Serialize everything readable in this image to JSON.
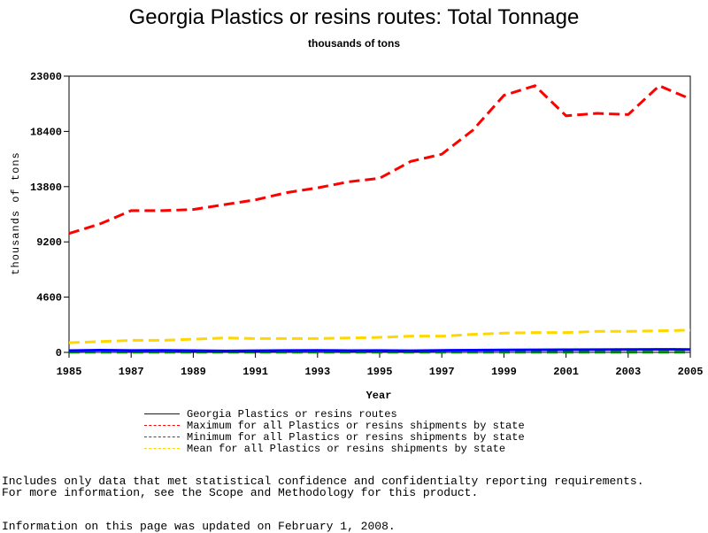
{
  "chart_data": {
    "type": "line",
    "title": "Georgia Plastics or resins routes: Total Tonnage",
    "subtitle": "thousands of tons",
    "xlabel": "Year",
    "ylabel": "thousands of tons",
    "x": [
      1985,
      1986,
      1987,
      1988,
      1989,
      1990,
      1991,
      1992,
      1993,
      1994,
      1995,
      1996,
      1997,
      1998,
      1999,
      2000,
      2001,
      2002,
      2003,
      2004,
      2005
    ],
    "xticks": [
      "1985",
      "1987",
      "1989",
      "1991",
      "1993",
      "1995",
      "1997",
      "1999",
      "2001",
      "2003",
      "2005"
    ],
    "yticks": [
      "0",
      "4600",
      "9200",
      "13800",
      "18400",
      "23000"
    ],
    "xlim": [
      1985,
      2005
    ],
    "ylim": [
      0,
      23000
    ],
    "series": [
      {
        "name": "Georgia Plastics or resins routes",
        "color": "#0000ff",
        "dash": "solid",
        "values": [
          150,
          180,
          160,
          170,
          150,
          120,
          140,
          160,
          170,
          150,
          160,
          140,
          170,
          180,
          200,
          210,
          220,
          230,
          240,
          250,
          240
        ]
      },
      {
        "name": "Maximum for all Plastics or resins shipments by state",
        "color": "#ff0000",
        "dash": "dashed",
        "values": [
          9900,
          10700,
          11800,
          11800,
          11900,
          12300,
          12700,
          13300,
          13700,
          14200,
          14500,
          15900,
          16500,
          18500,
          21400,
          22200,
          19700,
          19900,
          19800,
          22200,
          21100
        ]
      },
      {
        "name": "Minimum for all Plastics or resins shipments by state",
        "color": "#008000",
        "dash": "dashed",
        "values": [
          20,
          20,
          20,
          20,
          20,
          20,
          20,
          20,
          20,
          20,
          20,
          20,
          20,
          20,
          20,
          20,
          20,
          20,
          20,
          20,
          20
        ]
      },
      {
        "name": "Mean for all Plastics or resins shipments by state",
        "color": "#ffd700",
        "dash": "dashed",
        "values": [
          800,
          900,
          1000,
          1000,
          1100,
          1200,
          1150,
          1150,
          1150,
          1200,
          1250,
          1350,
          1350,
          1500,
          1600,
          1650,
          1650,
          1750,
          1750,
          1800,
          1850
        ]
      }
    ]
  },
  "footnotes": {
    "line1": "Includes only data that met statistical confidence and confidentialty reporting requirements.",
    "line2": "For more information, see the Scope and Methodology for this product.",
    "line3": "Information on this page was updated on February 1, 2008."
  }
}
